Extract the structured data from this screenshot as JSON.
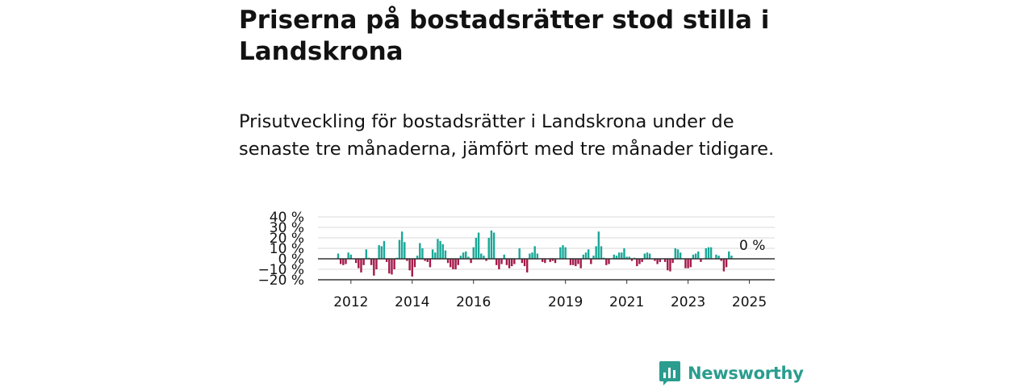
{
  "header": {
    "title": "Priserna på bostadsrätter stod stilla i Landskrona",
    "subtitle": "Prisutveckling för bostadsrätter i Landskrona under de senaste tre månaderna, jämfört med tre månader tidigare."
  },
  "brand": {
    "name": "Newsworthy",
    "icon": "newsworthy-logo-icon",
    "color": "#2a9d8f"
  },
  "colors": {
    "positive": "#1aa898",
    "negative": "#a3194a",
    "grid": "#d9d9d9",
    "zero_line": "#333333"
  },
  "chart_data": {
    "type": "bar",
    "ylim": [
      -20,
      40
    ],
    "yticks": [
      40,
      30,
      20,
      10,
      0,
      -10,
      -20
    ],
    "ytick_labels": [
      "40 %",
      "30 %",
      "20 %",
      "10 %",
      "0 %",
      "−10 %",
      "−20 %"
    ],
    "xtick_labels": [
      "2012",
      "2014",
      "2016",
      "2019",
      "2021",
      "2023",
      "2025"
    ],
    "xtick_positions": [
      5,
      29,
      53,
      89,
      113,
      137,
      161
    ],
    "last_value_label": "0 %",
    "grid": true,
    "legend": "none",
    "values": [
      5,
      -5,
      -6,
      -5,
      6,
      4,
      0,
      -4,
      -9,
      -13,
      -6,
      9,
      1,
      -6,
      -16,
      -10,
      13,
      12,
      17,
      -3,
      -14,
      -15,
      -10,
      1,
      18,
      26,
      16,
      -2,
      -11,
      -17,
      -8,
      3,
      15,
      10,
      -2,
      -3,
      -8,
      9,
      6,
      19,
      17,
      14,
      8,
      -4,
      -8,
      -10,
      -10,
      -6,
      3,
      6,
      7,
      2,
      -4,
      11,
      20,
      25,
      5,
      3,
      -2,
      20,
      27,
      25,
      -6,
      -10,
      -5,
      4,
      -6,
      -9,
      -7,
      -5,
      0,
      10,
      -4,
      -7,
      -13,
      5,
      6,
      12,
      5,
      0,
      -3,
      -4,
      0,
      -3,
      -2,
      -4,
      0,
      11,
      13,
      11,
      0,
      -6,
      -6,
      -7,
      -5,
      -9,
      4,
      6,
      9,
      -5,
      3,
      12,
      26,
      12,
      1,
      -6,
      -5,
      0,
      4,
      3,
      6,
      6,
      10,
      2,
      2,
      -2,
      1,
      -7,
      -5,
      -3,
      5,
      6,
      5,
      0,
      -2,
      -5,
      -3,
      0,
      -3,
      -11,
      -12,
      -4,
      10,
      9,
      6,
      0,
      -9,
      -9,
      -8,
      4,
      5,
      7,
      -3,
      0,
      10,
      11,
      11,
      0,
      4,
      3,
      -2,
      -12,
      -8,
      7,
      3,
      0
    ]
  }
}
